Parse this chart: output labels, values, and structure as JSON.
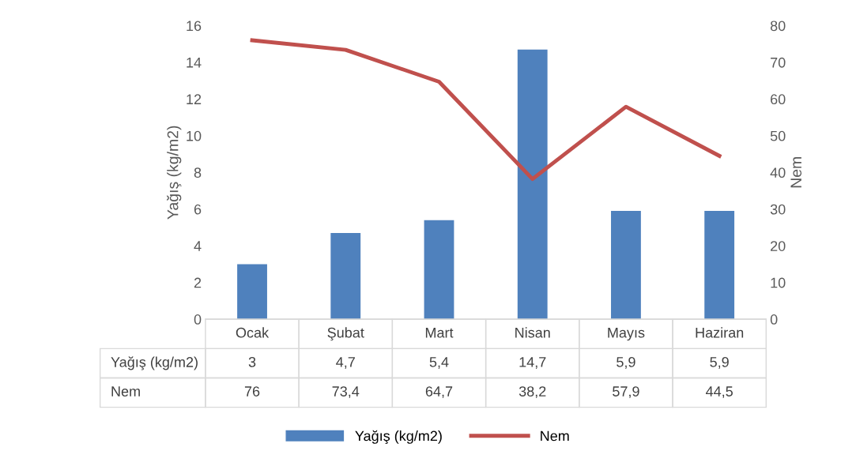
{
  "chart_data": {
    "type": "bar",
    "categories": [
      "Ocak",
      "Şubat",
      "Mart",
      "Nisan",
      "Mayıs",
      "Haziran"
    ],
    "ylabel": "Yağış (kg/m2)",
    "y2label": "Nem",
    "ylim": [
      0,
      16
    ],
    "yticks": [
      0,
      2,
      4,
      6,
      8,
      10,
      12,
      14,
      16
    ],
    "y2lim": [
      0,
      80
    ],
    "y2ticks": [
      0,
      10,
      20,
      30,
      40,
      50,
      60,
      70,
      80
    ],
    "grid": false,
    "legend": "bottom",
    "marker": "none",
    "line_style": "solid",
    "series": [
      {
        "name": "Yağış (kg/m2)",
        "color": "#4f81bd",
        "values": [
          3,
          4.7,
          5.4,
          14.7,
          5.9,
          5.9
        ],
        "value_labels": [
          "3",
          "4,7",
          "5,4",
          "14,7",
          "5,9",
          "5,9"
        ]
      },
      {
        "name": "Nem",
        "type": "line",
        "axis": "y2",
        "color": "#c0504d",
        "values": [
          76,
          73.4,
          64.7,
          38.2,
          57.9,
          44.5
        ],
        "value_labels": [
          "76",
          "73,4",
          "64,7",
          "38,2",
          "57,9",
          "44,5"
        ]
      }
    ]
  }
}
